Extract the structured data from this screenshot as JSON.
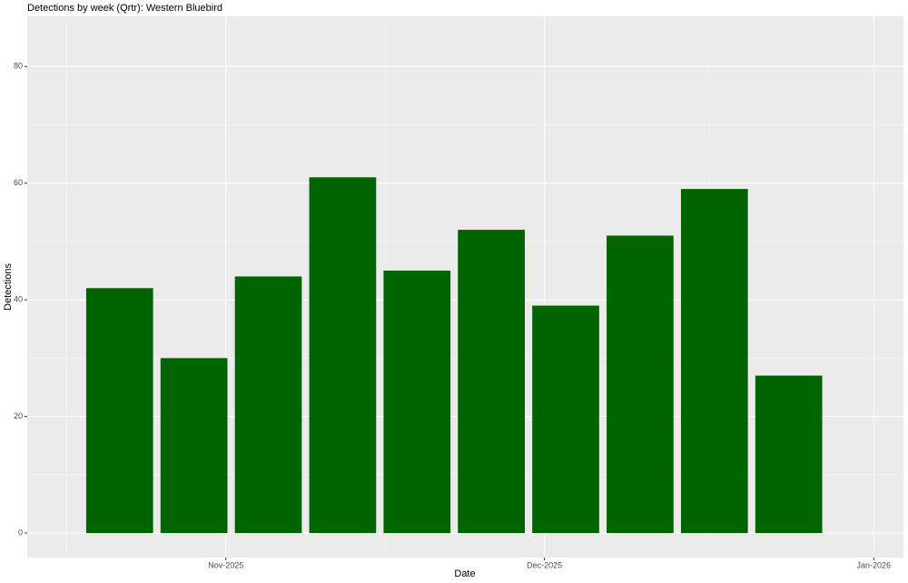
{
  "chart_data": {
    "type": "bar",
    "title": "Detections by week (Qrtr): Western Bluebird",
    "x_label": "Date",
    "y_label": "Detections",
    "x": [
      20383,
      20390,
      20397,
      20404,
      20411,
      20418,
      20425,
      20432,
      20439,
      20446
    ],
    "values": [
      42,
      30,
      44,
      61,
      45,
      52,
      39,
      51,
      59,
      27
    ],
    "color": "#006400",
    "xlim": [
      20374.3,
      20456.8
    ],
    "xticks": [
      {
        "value": 20393,
        "label": "Nov-2025"
      },
      {
        "value": 20423,
        "label": "Dec-2025"
      },
      {
        "value": 20454,
        "label": "Jan-2026"
      }
    ],
    "ylim": [
      -4.2,
      88.6
    ],
    "yticks": [
      0,
      20,
      40,
      60,
      80
    ],
    "grid": true
  }
}
